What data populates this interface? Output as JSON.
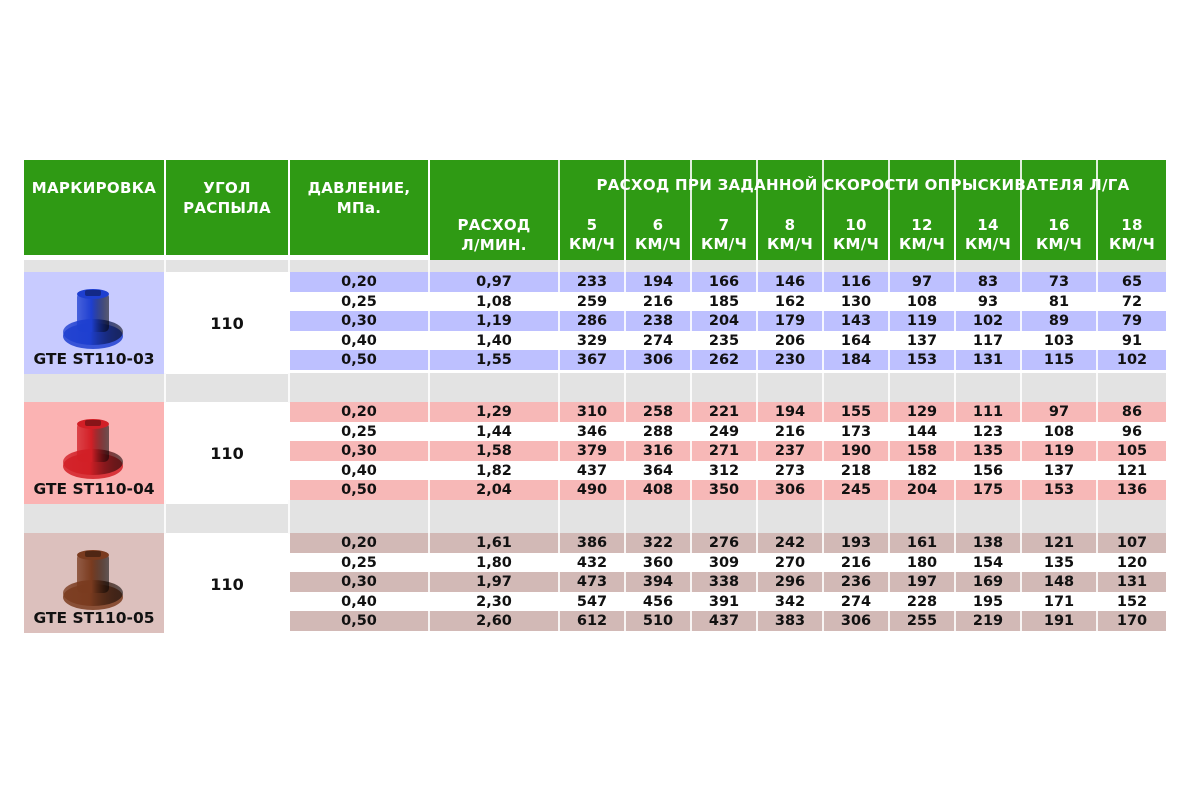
{
  "header": {
    "marking": "МАРКИРОВКА",
    "angle": "УГОЛ РАСПЫЛА",
    "pressure": "ДАВЛЕНИЕ, МПа.",
    "rate_title": "РАСХОД ПРИ ЗАДАННОЙ СКОРОСТИ ОПРЫСКИВАТЕЛЯ Л/ГА",
    "flow": "РАСХОД Л/МИН.",
    "speeds": [
      "5",
      "6",
      "7",
      "8",
      "10",
      "12",
      "14",
      "16",
      "18"
    ],
    "speed_unit": "КМ/Ч"
  },
  "colors": {
    "header_green": "#2f9a14",
    "blue": "#bdc0ff",
    "red": "#f7b8b7",
    "brown": "#d2b9b6"
  },
  "groups": [
    {
      "name": "GTE ST110-03",
      "angle": "110",
      "nozzle_color": "#1e3fd0",
      "rows": [
        {
          "pressure": "0,20",
          "flow": "0,97",
          "rates": [
            "233",
            "194",
            "166",
            "146",
            "116",
            "97",
            "83",
            "73",
            "65"
          ]
        },
        {
          "pressure": "0,25",
          "flow": "1,08",
          "rates": [
            "259",
            "216",
            "185",
            "162",
            "130",
            "108",
            "93",
            "81",
            "72"
          ]
        },
        {
          "pressure": "0,30",
          "flow": "1,19",
          "rates": [
            "286",
            "238",
            "204",
            "179",
            "143",
            "119",
            "102",
            "89",
            "79"
          ]
        },
        {
          "pressure": "0,40",
          "flow": "1,40",
          "rates": [
            "329",
            "274",
            "235",
            "206",
            "164",
            "137",
            "117",
            "103",
            "91"
          ]
        },
        {
          "pressure": "0,50",
          "flow": "1,55",
          "rates": [
            "367",
            "306",
            "262",
            "230",
            "184",
            "153",
            "131",
            "115",
            "102"
          ]
        }
      ]
    },
    {
      "name": "GTE ST110-04",
      "angle": "110",
      "nozzle_color": "#d21f26",
      "rows": [
        {
          "pressure": "0,20",
          "flow": "1,29",
          "rates": [
            "310",
            "258",
            "221",
            "194",
            "155",
            "129",
            "111",
            "97",
            "86"
          ]
        },
        {
          "pressure": "0,25",
          "flow": "1,44",
          "rates": [
            "346",
            "288",
            "249",
            "216",
            "173",
            "144",
            "123",
            "108",
            "96"
          ]
        },
        {
          "pressure": "0,30",
          "flow": "1,58",
          "rates": [
            "379",
            "316",
            "271",
            "237",
            "190",
            "158",
            "135",
            "119",
            "105"
          ]
        },
        {
          "pressure": "0,40",
          "flow": "1,82",
          "rates": [
            "437",
            "364",
            "312",
            "273",
            "218",
            "182",
            "156",
            "137",
            "121"
          ]
        },
        {
          "pressure": "0,50",
          "flow": "2,04",
          "rates": [
            "490",
            "408",
            "350",
            "306",
            "245",
            "204",
            "175",
            "153",
            "136"
          ]
        }
      ]
    },
    {
      "name": "GTE ST110-05",
      "angle": "110",
      "nozzle_color": "#7a3b1f",
      "rows": [
        {
          "pressure": "0,20",
          "flow": "1,61",
          "rates": [
            "386",
            "322",
            "276",
            "242",
            "193",
            "161",
            "138",
            "121",
            "107"
          ]
        },
        {
          "pressure": "0,25",
          "flow": "1,80",
          "rates": [
            "432",
            "360",
            "309",
            "270",
            "216",
            "180",
            "154",
            "135",
            "120"
          ]
        },
        {
          "pressure": "0,30",
          "flow": "1,97",
          "rates": [
            "473",
            "394",
            "338",
            "296",
            "236",
            "197",
            "169",
            "148",
            "131"
          ]
        },
        {
          "pressure": "0,40",
          "flow": "2,30",
          "rates": [
            "547",
            "456",
            "391",
            "342",
            "274",
            "228",
            "195",
            "171",
            "152"
          ]
        },
        {
          "pressure": "0,50",
          "flow": "2,60",
          "rates": [
            "612",
            "510",
            "437",
            "383",
            "306",
            "255",
            "219",
            "191",
            "170"
          ]
        }
      ]
    }
  ]
}
